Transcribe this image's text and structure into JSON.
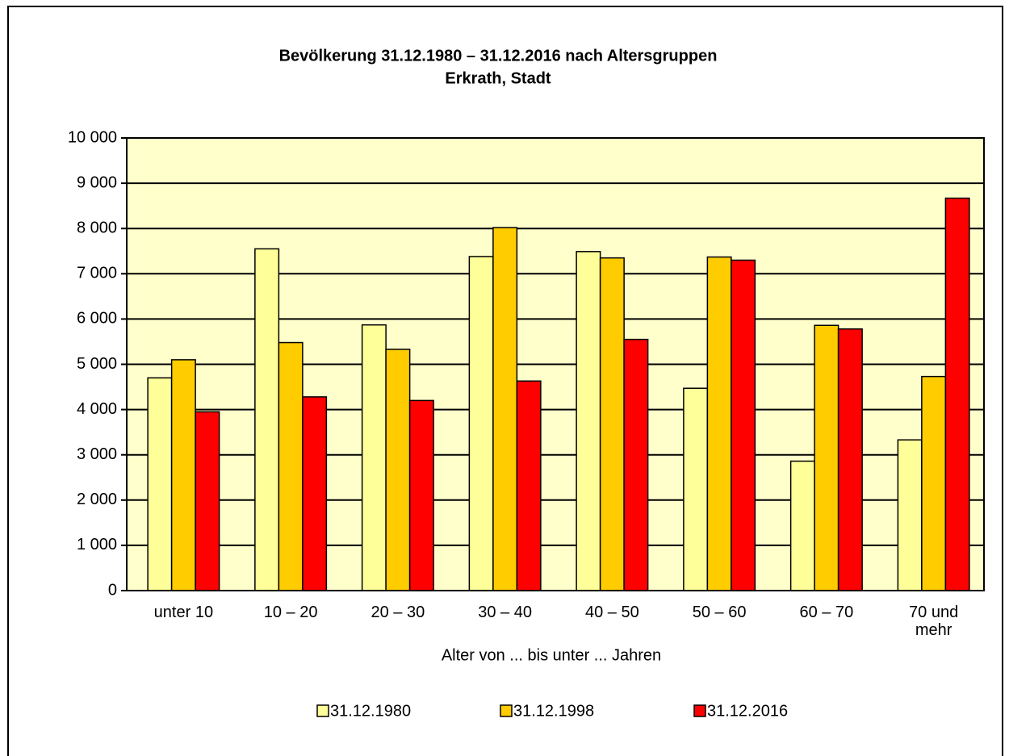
{
  "chart_data": {
    "type": "bar",
    "title": "Bevölkerung 31.12.1980 – 31.12.2016 nach Altersgruppen",
    "subtitle": "Erkrath, Stadt",
    "x_label": "Alter von ... bis unter ... Jahren",
    "categories": [
      "unter 10",
      "10 – 20",
      "20 – 30",
      "30 – 40",
      "40 – 50",
      "50 – 60",
      "60 – 70",
      "70 und mehr"
    ],
    "series": [
      {
        "name": "31.12.1980",
        "color": "#FFFF99",
        "values": [
          4700,
          7550,
          5870,
          7380,
          7490,
          4470,
          2860,
          3330
        ]
      },
      {
        "name": "31.12.1998",
        "color": "#FFCC00",
        "values": [
          5100,
          5480,
          5330,
          8020,
          7350,
          7370,
          5860,
          4730
        ]
      },
      {
        "name": "31.12.2016",
        "color": "#FF0000",
        "values": [
          3950,
          4280,
          4200,
          4630,
          5550,
          7300,
          5780,
          8670
        ]
      }
    ],
    "ylim": [
      0,
      10000
    ],
    "yticks": [
      0,
      {
        "value": 1000,
        "label": "1 000"
      },
      {
        "value": 2000,
        "label": "2 000"
      },
      {
        "value": 3000,
        "label": "3 000"
      },
      {
        "value": 4000,
        "label": "4 000"
      },
      {
        "value": 5000,
        "label": "5 000"
      },
      {
        "value": 6000,
        "label": "6 000"
      },
      {
        "value": 7000,
        "label": "7 000"
      },
      {
        "value": 8000,
        "label": "8 000"
      },
      {
        "value": 9000,
        "label": "9 000"
      },
      {
        "value": 10000,
        "label": "10 000"
      }
    ],
    "grid": true,
    "plot_background": "#FFFFCC",
    "legend": "bottom"
  }
}
